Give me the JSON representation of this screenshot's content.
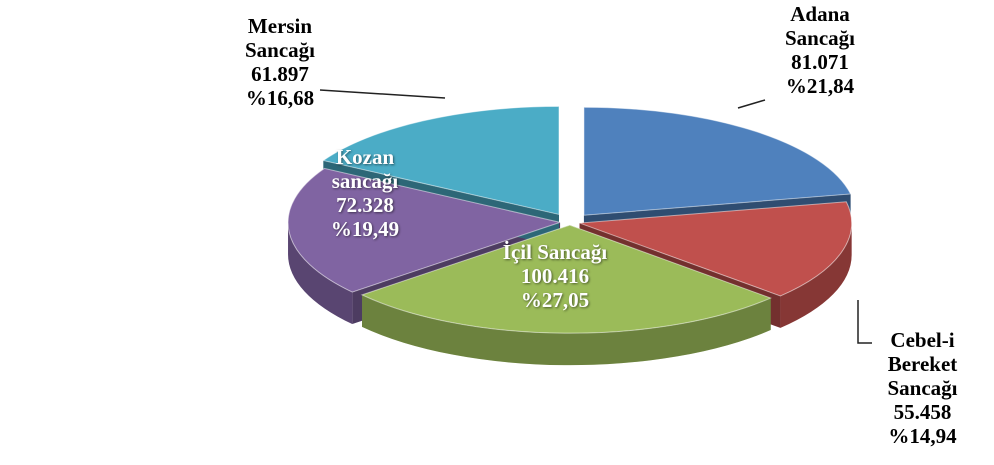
{
  "chart_data": {
    "type": "pie",
    "categories": [
      "Adana Sancağı",
      "Cebel-i Bereket Sancağı",
      "İçil Sancağı",
      "Kozan sancağı",
      "Mersin Sancağı"
    ],
    "values": [
      81071,
      55458,
      100416,
      72328,
      61897
    ],
    "value_labels": [
      "81.071",
      "55.458",
      "100.416",
      "72.328",
      "61.897"
    ],
    "percentages": [
      21.84,
      14.94,
      27.05,
      19.49,
      16.68
    ],
    "percentage_labels": [
      "%21,84",
      "%14,94",
      "%27,05",
      "%19,49",
      "%16,68"
    ],
    "colors": [
      "#4f81bd",
      "#c0504d",
      "#9bbb59",
      "#8064a2",
      "#4bacc6"
    ]
  }
}
